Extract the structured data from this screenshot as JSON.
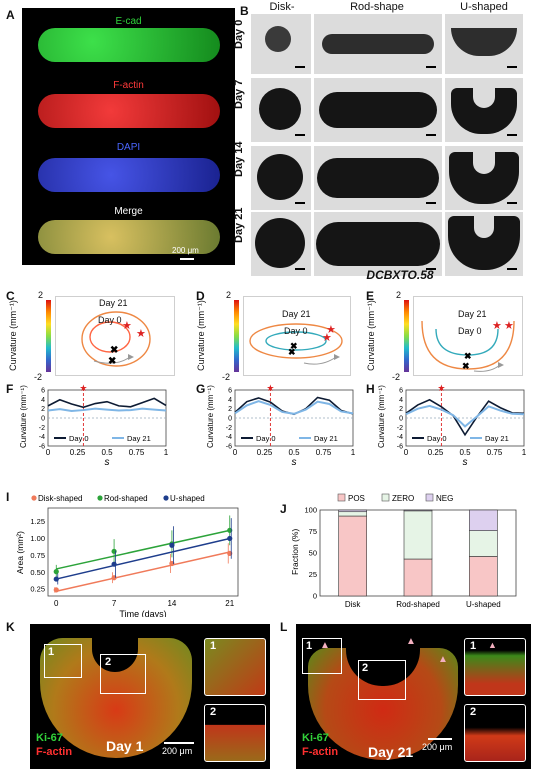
{
  "panels": {
    "A": {
      "letter": "A",
      "stains": [
        "E-cad",
        "F-actin",
        "DAPI",
        "Merge"
      ],
      "scale_bar": "200 μm",
      "colors": {
        "ecad": "#1fbf2a",
        "factin": "#e02020",
        "dapi": "#2a36c8"
      }
    },
    "B": {
      "letter": "B",
      "columns": [
        "Disk-shaped",
        "Rod-shape",
        "U-shaped"
      ],
      "rows": [
        "Day 0",
        "Day 7",
        "Day 14",
        "Day 21"
      ],
      "caption": "DCBXTO.58"
    },
    "C": {
      "letter": "C",
      "day21": "Day 21",
      "day0": "Day 0",
      "ylabel": "Curvature (mm⁻¹)",
      "cmax": "2",
      "cmin": "-2"
    },
    "D": {
      "letter": "D",
      "day21": "Day 21",
      "day0": "Day 0",
      "ylabel": "Curvature (mm⁻¹)",
      "cmax": "2",
      "cmin": "-2"
    },
    "E": {
      "letter": "E",
      "day21": "Day 21",
      "day0": "Day 0",
      "ylabel": "Curvature (mm⁻¹)",
      "cmax": "2",
      "cmin": "-2"
    },
    "F": {
      "letter": "F"
    },
    "G": {
      "letter": "G"
    },
    "H": {
      "letter": "H"
    },
    "I": {
      "letter": "I"
    },
    "J": {
      "letter": "J"
    },
    "K": {
      "letter": "K",
      "insets": [
        "1",
        "2"
      ],
      "stain1": "Ki-67",
      "stain2": "F-actin",
      "day": "Day 1",
      "scale_bar": "200 μm"
    },
    "L": {
      "letter": "L",
      "insets": [
        "1",
        "2"
      ],
      "stain1": "Ki-67",
      "stain2": "F-actin",
      "day": "Day 21",
      "scale_bar": "200 μm"
    }
  },
  "chart_data": [
    {
      "panel": "F",
      "type": "line",
      "xlabel": "s",
      "ylabel": "Curvature (mm⁻¹)",
      "xlim": [
        0,
        1
      ],
      "ylim": [
        -6,
        6
      ],
      "xticks": [
        "0",
        "0.25",
        "0.5",
        "0.75",
        "1"
      ],
      "yticks": [
        "6",
        "4",
        "2",
        "0",
        "-2",
        "-4",
        "-6"
      ],
      "marker_s": 0.3,
      "series": [
        {
          "name": "Day 0",
          "color": "#0d1b33",
          "x": [
            0,
            0.1,
            0.2,
            0.3,
            0.4,
            0.5,
            0.6,
            0.7,
            0.8,
            0.9,
            1.0
          ],
          "y": [
            2.6,
            3.9,
            3.0,
            2.3,
            3.1,
            3.5,
            2.6,
            2.4,
            3.3,
            4.2,
            2.7
          ]
        },
        {
          "name": "Day 21",
          "color": "#7fb6e6",
          "x": [
            0,
            0.1,
            0.2,
            0.3,
            0.4,
            0.5,
            0.6,
            0.7,
            0.8,
            0.9,
            1.0
          ],
          "y": [
            1.6,
            1.9,
            1.5,
            1.7,
            2.0,
            1.8,
            1.6,
            1.7,
            2.0,
            1.8,
            1.6
          ]
        }
      ]
    },
    {
      "panel": "G",
      "type": "line",
      "xlabel": "s",
      "ylabel": "Curvature (mm⁻¹)",
      "xlim": [
        0,
        1
      ],
      "ylim": [
        -6,
        6
      ],
      "xticks": [
        "0",
        "0.25",
        "0.5",
        "0.75",
        "1"
      ],
      "yticks": [
        "6",
        "4",
        "2",
        "0",
        "-2",
        "-4",
        "-6"
      ],
      "marker_s": 0.3,
      "series": [
        {
          "name": "Day 0",
          "color": "#0d1b33",
          "x": [
            0,
            0.1,
            0.2,
            0.3,
            0.4,
            0.5,
            0.6,
            0.7,
            0.8,
            0.9,
            1.0
          ],
          "y": [
            1.2,
            3.5,
            4.3,
            3.4,
            1.5,
            0.8,
            2.0,
            4.4,
            3.8,
            1.6,
            0.9
          ]
        },
        {
          "name": "Day 21",
          "color": "#7fb6e6",
          "x": [
            0,
            0.1,
            0.2,
            0.3,
            0.4,
            0.5,
            0.6,
            0.7,
            0.8,
            0.9,
            1.0
          ],
          "y": [
            1.0,
            2.7,
            3.6,
            2.8,
            1.3,
            0.9,
            1.8,
            3.5,
            3.0,
            1.4,
            1.0
          ]
        }
      ]
    },
    {
      "panel": "H",
      "type": "line",
      "xlabel": "s",
      "ylabel": "Curvature (mm⁻¹)",
      "xlim": [
        0,
        1
      ],
      "ylim": [
        -6,
        6
      ],
      "xticks": [
        "0",
        "0.25",
        "0.5",
        "0.75",
        "1"
      ],
      "yticks": [
        "6",
        "4",
        "2",
        "0",
        "-2",
        "-4",
        "-6"
      ],
      "marker_s": 0.3,
      "series": [
        {
          "name": "Day 0",
          "color": "#0d1b33",
          "x": [
            0,
            0.1,
            0.2,
            0.3,
            0.4,
            0.5,
            0.6,
            0.7,
            0.8,
            0.9,
            1.0
          ],
          "y": [
            1.0,
            2.8,
            3.9,
            2.4,
            0.5,
            -3.6,
            0.2,
            3.6,
            2.2,
            1.1,
            1.0
          ]
        },
        {
          "name": "Day 21",
          "color": "#7fb6e6",
          "x": [
            0,
            0.1,
            0.2,
            0.3,
            0.4,
            0.5,
            0.6,
            0.7,
            0.8,
            0.9,
            1.0
          ],
          "y": [
            0.8,
            2.0,
            2.6,
            1.8,
            0.6,
            -1.8,
            0.3,
            2.5,
            1.6,
            0.9,
            0.8
          ]
        }
      ]
    },
    {
      "panel": "I",
      "type": "scatter",
      "xlabel": "Time (days)",
      "ylabel": "Area (mm²)",
      "xlim": [
        -1,
        22
      ],
      "ylim": [
        0.15,
        1.45
      ],
      "xticks": [
        0,
        7,
        14,
        21
      ],
      "yticks": [
        "0.25",
        "0.50",
        "0.75",
        "1.00",
        "1.25"
      ],
      "x": [
        0,
        7,
        14,
        21
      ],
      "series": [
        {
          "name": "Disk-shaped",
          "color": "#f07a5a",
          "values": [
            0.24,
            0.42,
            0.63,
            0.78
          ],
          "err": [
            0.04,
            0.08,
            0.14,
            0.15
          ],
          "fit": [
            0.22,
            0.8
          ]
        },
        {
          "name": "Rod-shaped",
          "color": "#2ca33a",
          "values": [
            0.51,
            0.81,
            0.92,
            1.12
          ],
          "err": [
            0.1,
            0.18,
            0.2,
            0.22
          ],
          "fit": [
            0.55,
            1.12
          ]
        },
        {
          "name": "U-shaped",
          "color": "#1e3d8c",
          "values": [
            0.4,
            0.62,
            0.9,
            1.0
          ],
          "err": [
            0.08,
            0.2,
            0.28,
            0.3
          ],
          "fit": [
            0.4,
            1.0
          ]
        }
      ]
    },
    {
      "panel": "J",
      "type": "bar",
      "ylabel": "Fraction (%)",
      "ylim": [
        0,
        100
      ],
      "yticks": [
        "0",
        "25",
        "50",
        "75",
        "100"
      ],
      "categories": [
        "Disk",
        "Rod-shaped",
        "U-shaped"
      ],
      "series": [
        {
          "name": "POS",
          "color": "#f8c6c6",
          "values": [
            93,
            43,
            46
          ]
        },
        {
          "name": "ZERO",
          "color": "#e6f4e6",
          "values": [
            5,
            56,
            30
          ]
        },
        {
          "name": "NEG",
          "color": "#ddd0ef",
          "values": [
            2,
            1,
            24
          ]
        }
      ]
    }
  ]
}
